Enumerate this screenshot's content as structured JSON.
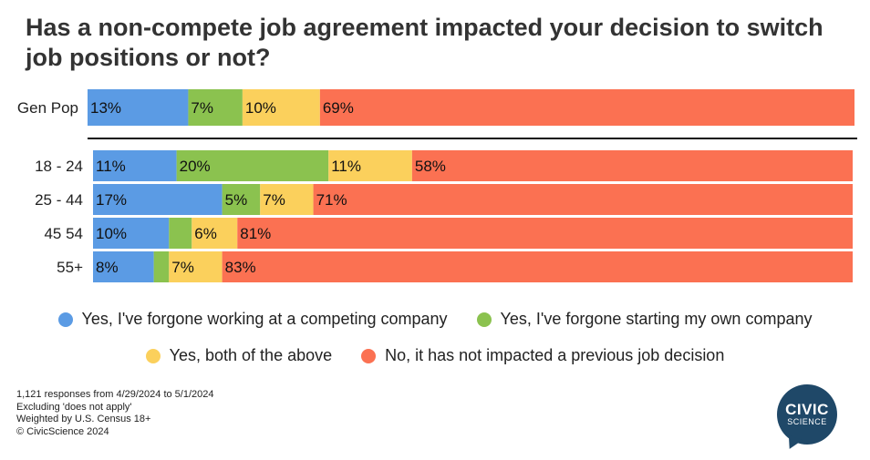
{
  "chart_data": {
    "type": "bar",
    "orientation": "horizontal",
    "stacked": true,
    "normalized": true,
    "title": "Has a non-compete job agreement impacted your decision to switch job positions or not?",
    "categories": [
      "Gen Pop",
      "18 - 24",
      "25 - 44",
      "45 54",
      "55+"
    ],
    "series": [
      {
        "name": "Yes, I've forgone working at a competing company",
        "color": "#5b9be4",
        "values": [
          13,
          11,
          17,
          10,
          8
        ],
        "labels": [
          "13%",
          "11%",
          "17%",
          "10%",
          "8%"
        ]
      },
      {
        "name": "Yes, I've forgone starting my own company",
        "color": "#8bc24f",
        "values": [
          7,
          20,
          5,
          3,
          2
        ],
        "labels": [
          "7%",
          "20%",
          "5%",
          "",
          ""
        ]
      },
      {
        "name": "Yes, both of the above",
        "color": "#fbd05c",
        "values": [
          10,
          11,
          7,
          6,
          7
        ],
        "labels": [
          "10%",
          "11%",
          "7%",
          "6%",
          "7%"
        ]
      },
      {
        "name": "No, it has not impacted a previous job decision",
        "color": "#fb7152",
        "values": [
          69,
          58,
          71,
          81,
          83
        ],
        "labels": [
          "69%",
          "58%",
          "71%",
          "81%",
          "83%"
        ]
      }
    ],
    "legend_position": "bottom"
  },
  "footnotes": [
    "1,121 responses from 4/29/2024 to 5/1/2024",
    "Excluding 'does not apply'",
    "Weighted by U.S. Census 18+",
    "© CivicScience 2024"
  ],
  "logo": {
    "top": "CIVIC",
    "bottom": "SCIENCE"
  }
}
